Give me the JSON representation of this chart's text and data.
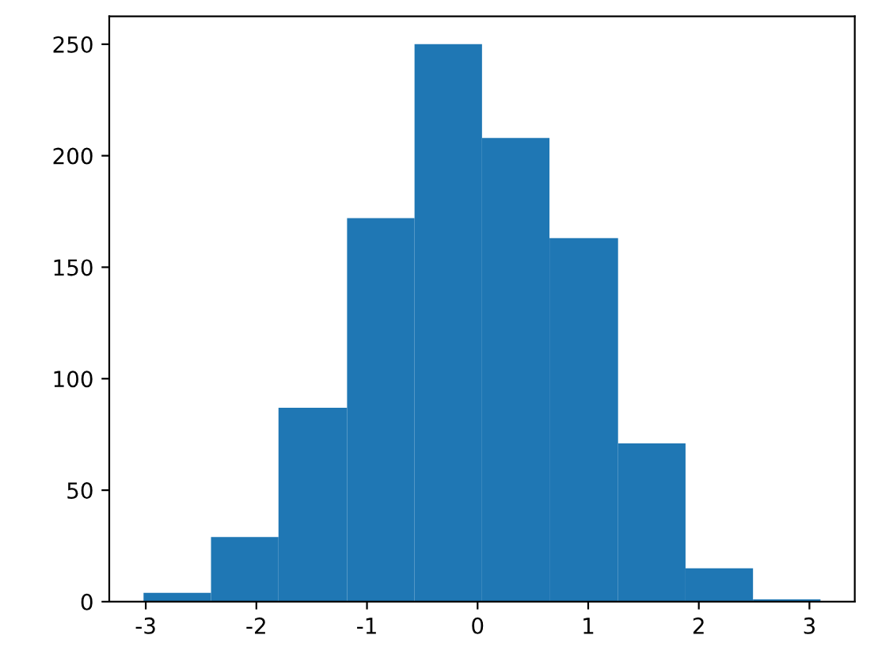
{
  "chart_data": {
    "type": "histogram",
    "bins": [
      -3.02,
      -2.41,
      -1.8,
      -1.18,
      -0.57,
      0.04,
      0.65,
      1.27,
      1.88,
      2.49,
      3.1
    ],
    "values": [
      4,
      29,
      87,
      172,
      250,
      208,
      163,
      71,
      15,
      1
    ],
    "color": "#1f77b4",
    "xlim": [
      -3.33,
      3.41
    ],
    "ylim": [
      0,
      262.5
    ],
    "xticks": [
      -3,
      -2,
      -1,
      0,
      1,
      2,
      3
    ],
    "yticks": [
      0,
      50,
      100,
      150,
      200,
      250
    ],
    "grid": false
  }
}
